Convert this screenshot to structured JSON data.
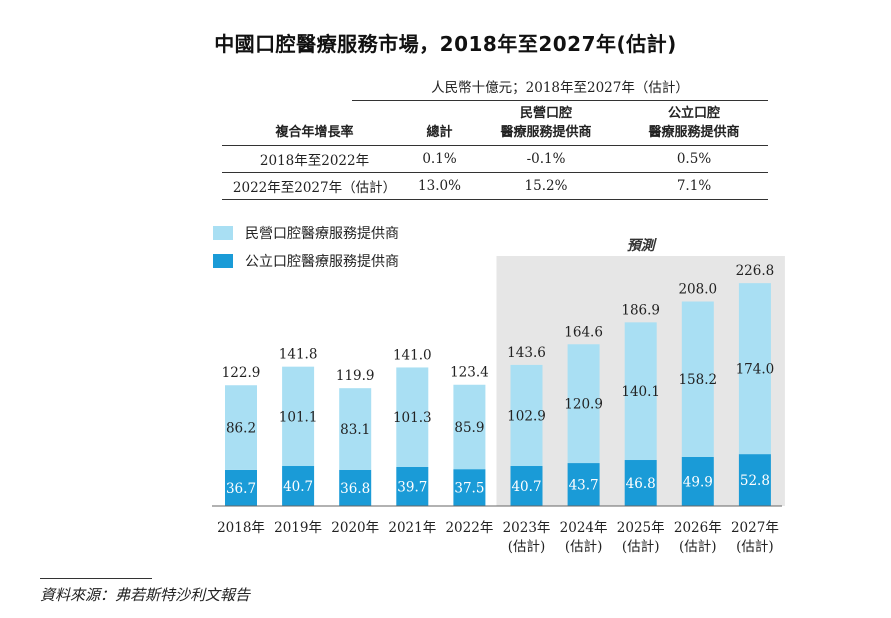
{
  "title": "中國口腔醫療服務市場，2018年至2027年(估計)",
  "table": {
    "unit": "人民幣十億元；2018年至2027年（估計）",
    "headers": {
      "label": "複合年增長率",
      "total": "總計",
      "private": "民營口腔\n醫療服務提供商",
      "public": "公立口腔\n醫療服務提供商"
    },
    "rows": [
      {
        "period": "2018年至2022年",
        "total": "0.1%",
        "private": "-0.1%",
        "public": "0.5%"
      },
      {
        "period": "2022年至2027年（估計）",
        "total": "13.0%",
        "private": "15.2%",
        "public": "7.1%"
      }
    ]
  },
  "colors": {
    "private": "#a9dff3",
    "public": "#1a9bd7",
    "forecast_bg": "#e6e6e6"
  },
  "chart_data": {
    "type": "bar",
    "stacked": true,
    "categories": [
      [
        "2018年"
      ],
      [
        "2019年"
      ],
      [
        "2020年"
      ],
      [
        "2021年"
      ],
      [
        "2022年"
      ],
      [
        "2023年",
        "(估計)"
      ],
      [
        "2024年",
        "(估計)"
      ],
      [
        "2025年",
        "(估計)"
      ],
      [
        "2026年",
        "(估計)"
      ],
      [
        "2027年",
        "(估計)"
      ]
    ],
    "series": [
      {
        "name": "公立口腔醫療服務提供商",
        "values": [
          36.7,
          40.7,
          36.8,
          39.7,
          37.5,
          40.7,
          43.7,
          46.8,
          49.9,
          52.8
        ]
      },
      {
        "name": "民營口腔醫療服務提供商",
        "values": [
          86.2,
          101.1,
          83.1,
          101.3,
          85.9,
          102.9,
          120.9,
          140.1,
          158.2,
          174.0
        ]
      }
    ],
    "value_labels": {
      "public": [
        "36.7",
        "40.7",
        "36.8",
        "39.7",
        "37.5",
        "40.7",
        "43.7",
        "46.8",
        "49.9",
        "52.8"
      ],
      "private": [
        "86.2",
        "101.1",
        "83.1",
        "101.3",
        "85.9",
        "102.9",
        "120.9",
        "140.1",
        "158.2",
        "174.0"
      ]
    },
    "totals": [
      "122.9",
      "141.8",
      "119.9",
      "141.0",
      "123.4",
      "143.6",
      "164.6",
      "186.9",
      "208.0",
      "226.8"
    ],
    "forecast_label": "預測",
    "forecast_start_index": 5,
    "legend": [
      "民營口腔醫療服務提供商",
      "公立口腔醫療服務提供商"
    ],
    "ylim": [
      0,
      230
    ]
  },
  "source": "資料來源：弗若斯特沙利文報告"
}
